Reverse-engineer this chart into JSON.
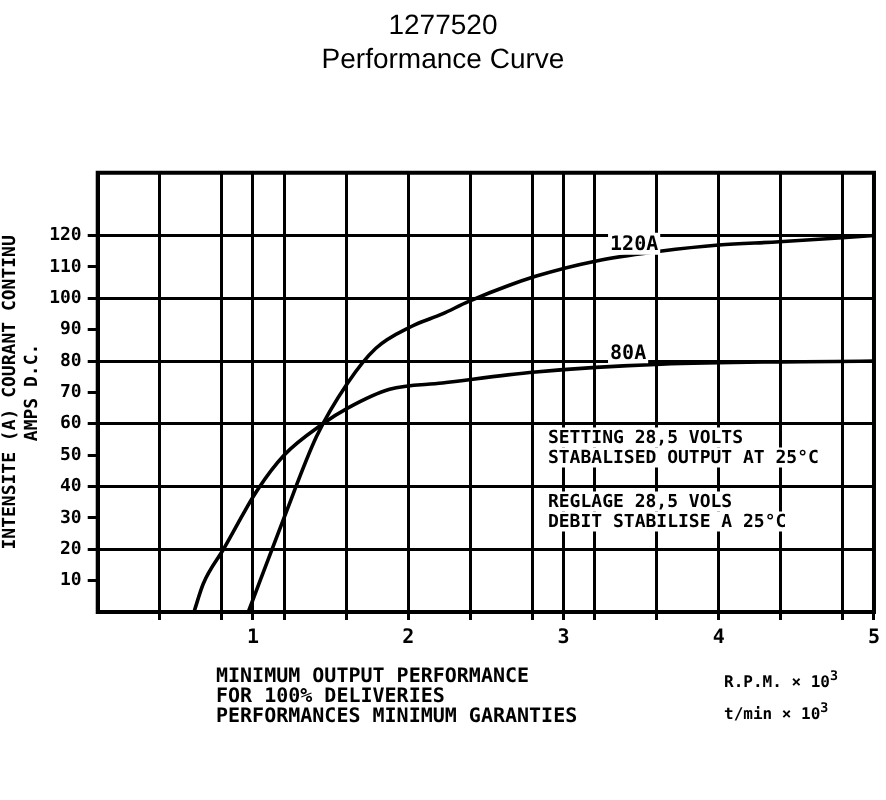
{
  "chart_data": {
    "type": "line",
    "title": "1277520",
    "subtitle": "Performance Curve",
    "ylabel": "INTENSITE (A) COURANT CONTINU\nAMPS D.C.",
    "xlabel": "R.P.M. × 10$^{3}$\nt/min × 10$^{3}$",
    "xlim": [
      0,
      5
    ],
    "ylim": [
      0,
      140
    ],
    "xticks": [
      {
        "value": 0.4,
        "label": null
      },
      {
        "value": 0.8,
        "label": null
      },
      1,
      {
        "value": 1.2,
        "label": null
      },
      {
        "value": 1.6,
        "label": null
      },
      2,
      {
        "value": 2.4,
        "label": null
      },
      {
        "value": 2.8,
        "label": null
      },
      3,
      {
        "value": 3.2,
        "label": null
      },
      {
        "value": 3.6,
        "label": null
      },
      4,
      {
        "value": 4.4,
        "label": null
      },
      {
        "value": 4.8,
        "label": null
      },
      5
    ],
    "yticks": [
      10,
      20,
      30,
      40,
      50,
      60,
      70,
      80,
      90,
      100,
      110,
      120
    ],
    "grid": true,
    "legend": false,
    "marker": "none",
    "line_style": "solid",
    "series": [
      {
        "name": "120A",
        "color": "#000000",
        "x": [
          0.97,
          1.2,
          1.41,
          1.61,
          1.79,
          2.02,
          2.22,
          2.39,
          2.82,
          3.22,
          3.62,
          4.0,
          4.39,
          5.0
        ],
        "values": [
          0,
          30,
          56,
          73,
          84,
          91,
          95,
          99,
          107,
          112,
          115,
          117,
          118,
          120
        ]
      },
      {
        "name": "80A",
        "color": "#000000",
        "x": [
          0.62,
          0.68,
          0.81,
          1.03,
          1.2,
          1.45,
          1.61,
          1.88,
          2.22,
          2.82,
          3.63,
          5.0
        ],
        "values": [
          0,
          9,
          20,
          39,
          50,
          60,
          65,
          71,
          73,
          76.5,
          79,
          80
        ]
      }
    ],
    "annotations": [
      "SETTING 28,5 VOLTS\nSTABALISED OUTPUT AT 25°C",
      "REGLAGE 28,5 VOLS\nDEBIT STABILISE A 25°C",
      "MINIMUM OUTPUT PERFORMANCE\nFOR 100% DELIVERIES\nPERFORMANCES MINIMUM GARANTIES"
    ]
  }
}
